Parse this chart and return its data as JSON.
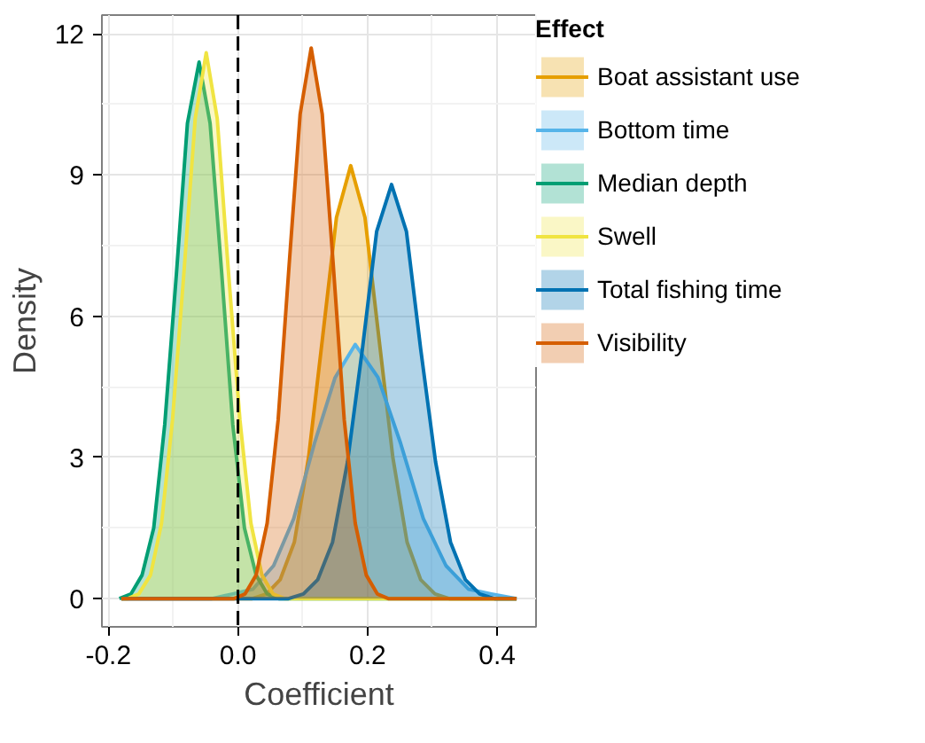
{
  "chart_data": {
    "type": "area",
    "xlabel": "Coefficient",
    "ylabel": "Density",
    "legend_title": "Effect",
    "legend": "right",
    "grid": true,
    "xlim": [
      -0.21,
      0.46
    ],
    "ylim": [
      -0.6,
      12.4
    ],
    "xticks": [
      -0.2,
      {
        "value": 0,
        "label": "0.0"
      },
      0.2,
      0.4
    ],
    "yticks": [
      0,
      3,
      6,
      9,
      12
    ],
    "ref_lines": [
      {
        "axis": "x",
        "value": 0,
        "color": "#000000",
        "line_style": "dashed"
      }
    ],
    "series": [
      {
        "name": "Boat assistant use",
        "color": "#e69f00",
        "x": [
          -0.18,
          0.022,
          0.044,
          0.065,
          0.087,
          0.109,
          0.131,
          0.152,
          0.174,
          0.196,
          0.217,
          0.239,
          0.261,
          0.282,
          0.304,
          0.326,
          0.43
        ],
        "values": [
          0,
          0.0,
          0.1,
          0.4,
          1.2,
          3.0,
          5.6,
          8.1,
          9.2,
          8.1,
          5.6,
          3.0,
          1.2,
          0.4,
          0.1,
          0.0,
          0
        ]
      },
      {
        "name": "Bottom time",
        "color": "#56b4e9",
        "x": [
          -0.18,
          -0.04,
          -0.008,
          0.023,
          0.055,
          0.086,
          0.118,
          0.15,
          0.181,
          0.216,
          0.251,
          0.286,
          0.321,
          0.356,
          0.391,
          0.43
        ],
        "values": [
          0,
          0.0,
          0.1,
          0.2,
          0.7,
          1.7,
          3.3,
          4.7,
          5.4,
          4.7,
          3.3,
          1.7,
          0.7,
          0.2,
          0.1,
          0.0
        ]
      },
      {
        "name": "Median depth",
        "color": "#009e73",
        "x": [
          -0.183,
          -0.165,
          -0.148,
          -0.13,
          -0.113,
          -0.095,
          -0.078,
          -0.06,
          -0.043,
          -0.025,
          -0.008,
          0.01,
          0.028,
          0.045,
          0.063,
          0.43
        ],
        "values": [
          0.0,
          0.1,
          0.5,
          1.5,
          3.7,
          6.9,
          10.1,
          11.4,
          10.1,
          6.9,
          3.7,
          1.5,
          0.5,
          0.1,
          0.0,
          0
        ]
      },
      {
        "name": "Swell",
        "color": "#f0e442",
        "x": [
          -0.18,
          -0.17,
          -0.153,
          -0.135,
          -0.118,
          -0.101,
          -0.083,
          -0.066,
          -0.049,
          -0.032,
          -0.015,
          0.003,
          0.02,
          0.037,
          0.054,
          0.072,
          0.43
        ],
        "values": [
          0,
          0.0,
          0.1,
          0.5,
          1.6,
          3.8,
          7.0,
          10.2,
          11.6,
          10.2,
          7.0,
          3.8,
          1.6,
          0.5,
          0.1,
          0.0,
          0
        ]
      },
      {
        "name": "Total fishing time",
        "color": "#0072b2",
        "x": [
          -0.18,
          0.078,
          0.101,
          0.123,
          0.146,
          0.169,
          0.192,
          0.214,
          0.237,
          0.26,
          0.282,
          0.305,
          0.328,
          0.351,
          0.373,
          0.396,
          0.43
        ],
        "values": [
          0,
          0.0,
          0.1,
          0.4,
          1.2,
          2.9,
          5.3,
          7.8,
          8.8,
          7.8,
          5.3,
          2.9,
          1.2,
          0.4,
          0.1,
          0.0,
          0
        ]
      },
      {
        "name": "Visibility",
        "color": "#d55e00",
        "x": [
          -0.18,
          -0.006,
          0.011,
          0.028,
          0.045,
          0.062,
          0.079,
          0.096,
          0.113,
          0.13,
          0.147,
          0.164,
          0.181,
          0.198,
          0.215,
          0.232,
          0.43
        ],
        "values": [
          0,
          0.0,
          0.1,
          0.5,
          1.6,
          3.8,
          7.1,
          10.3,
          11.7,
          10.3,
          7.1,
          3.8,
          1.6,
          0.5,
          0.1,
          0.0,
          0
        ]
      }
    ]
  }
}
